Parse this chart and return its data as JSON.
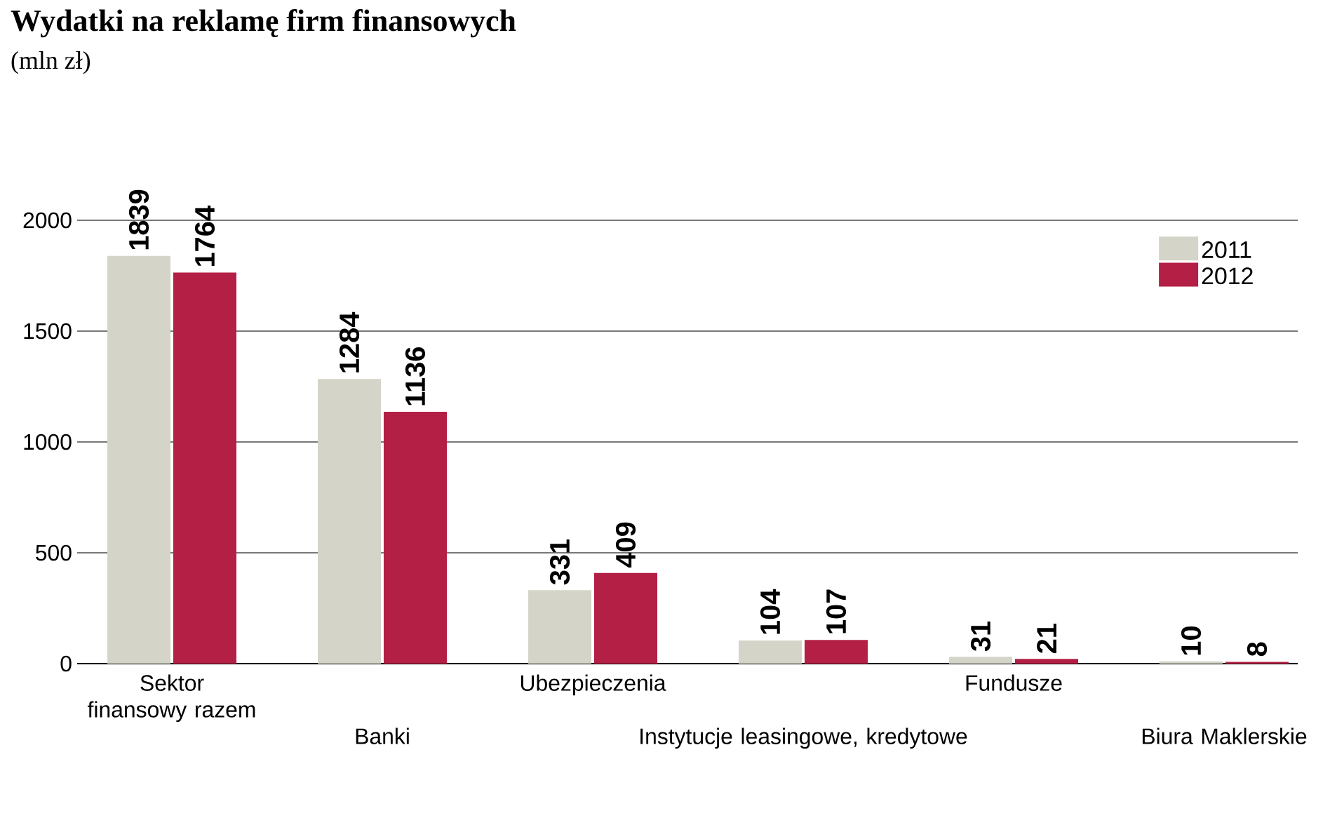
{
  "chart_data": {
    "type": "bar",
    "title": "Wydatki na reklamę firm finansowych",
    "subtitle": "(mln zł)",
    "categories": [
      "Sektor finansowy razem",
      "Banki",
      "Ubezpieczenia",
      "Instytucje leasingowe, kredytowe",
      "Fundusze",
      "Biura Maklerskie"
    ],
    "series": [
      {
        "name": "2011",
        "color": "#d4d5c8",
        "values": [
          1839,
          1284,
          331,
          104,
          31,
          10
        ]
      },
      {
        "name": "2012",
        "color": "#b41f45",
        "values": [
          1764,
          1136,
          409,
          107,
          21,
          8
        ]
      }
    ],
    "ylim": [
      0,
      2000
    ],
    "yticks": [
      0,
      500,
      1000,
      1500,
      2000
    ],
    "grid": "y",
    "legend": "top right",
    "data_labels": true
  }
}
